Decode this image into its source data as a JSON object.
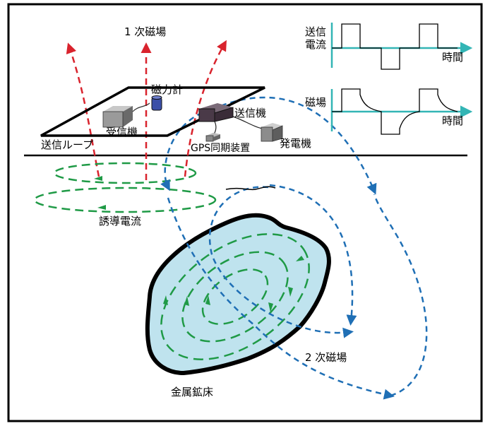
{
  "labels": {
    "primary_field": "1 次磁場",
    "magnetometer": "磁力計",
    "receiver": "受信機",
    "transmitter": "送信機",
    "transmit_loop": "送信ループ",
    "gps_sync": "GPS同期装置",
    "generator": "発電機",
    "induced_current": "誘導電流",
    "secondary_field": "2 次磁場",
    "ore_body": "金属鉱床"
  },
  "waveform_top": {
    "ylabel_line1": "送信",
    "ylabel_line2": "電流",
    "xlabel": "時間"
  },
  "waveform_bottom": {
    "ylabel": "磁場",
    "xlabel": "時間"
  },
  "colors": {
    "primary": "#d9232d",
    "induced": "#1f9a46",
    "secondary": "#1f6fb5",
    "axis": "#33b5b5",
    "ore_fill": "#bfe3ee",
    "frame": "#000000"
  }
}
